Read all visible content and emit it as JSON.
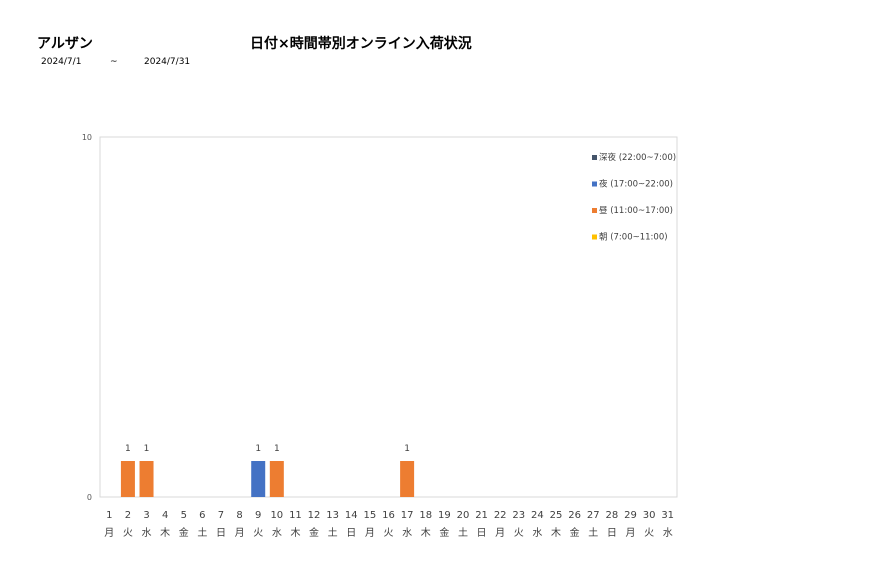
{
  "header": {
    "shop_name": "アルザン",
    "title": "日付×時間帯別オンライン入荷状況",
    "date_start": "2024/7/1",
    "date_sep": "~",
    "date_end": "2024/7/31"
  },
  "chart_data": {
    "type": "bar",
    "stacked": true,
    "ylim": [
      0,
      10
    ],
    "y_ticks": [
      "0",
      "10"
    ],
    "categories": [
      "1",
      "2",
      "3",
      "4",
      "5",
      "6",
      "7",
      "8",
      "9",
      "10",
      "11",
      "12",
      "13",
      "14",
      "15",
      "16",
      "17",
      "18",
      "19",
      "20",
      "21",
      "22",
      "23",
      "24",
      "25",
      "26",
      "27",
      "28",
      "29",
      "30",
      "31"
    ],
    "weekdays": [
      "月",
      "火",
      "水",
      "木",
      "金",
      "土",
      "日",
      "月",
      "火",
      "水",
      "木",
      "金",
      "土",
      "日",
      "月",
      "火",
      "水",
      "木",
      "金",
      "土",
      "日",
      "月",
      "火",
      "水",
      "木",
      "金",
      "土",
      "日",
      "月",
      "火",
      "水"
    ],
    "series": [
      {
        "name": "深夜 (22:00~7:00)",
        "color": "#44546A",
        "values": [
          0,
          0,
          0,
          0,
          0,
          0,
          0,
          0,
          0,
          0,
          0,
          0,
          0,
          0,
          0,
          0,
          0,
          0,
          0,
          0,
          0,
          0,
          0,
          0,
          0,
          0,
          0,
          0,
          0,
          0,
          0
        ]
      },
      {
        "name": "夜 (17:00~22:00)",
        "color": "#4472C4",
        "values": [
          0,
          0,
          0,
          0,
          0,
          0,
          0,
          0,
          1,
          0,
          0,
          0,
          0,
          0,
          0,
          0,
          0,
          0,
          0,
          0,
          0,
          0,
          0,
          0,
          0,
          0,
          0,
          0,
          0,
          0,
          0
        ]
      },
      {
        "name": "昼 (11:00~17:00)",
        "color": "#ED7D31",
        "values": [
          0,
          1,
          1,
          0,
          0,
          0,
          0,
          0,
          0,
          1,
          0,
          0,
          0,
          0,
          0,
          0,
          1,
          0,
          0,
          0,
          0,
          0,
          0,
          0,
          0,
          0,
          0,
          0,
          0,
          0,
          0
        ]
      },
      {
        "name": "朝 (7:00~11:00)",
        "color": "#FFC000",
        "values": [
          0,
          0,
          0,
          0,
          0,
          0,
          0,
          0,
          0,
          0,
          0,
          0,
          0,
          0,
          0,
          0,
          0,
          0,
          0,
          0,
          0,
          0,
          0,
          0,
          0,
          0,
          0,
          0,
          0,
          0,
          0
        ]
      }
    ],
    "totals": [
      0,
      1,
      1,
      0,
      0,
      0,
      0,
      0,
      1,
      1,
      0,
      0,
      0,
      0,
      0,
      0,
      1,
      0,
      0,
      0,
      0,
      0,
      0,
      0,
      0,
      0,
      0,
      0,
      0,
      0,
      0
    ],
    "legend_position": "top-right",
    "grid": false
  }
}
